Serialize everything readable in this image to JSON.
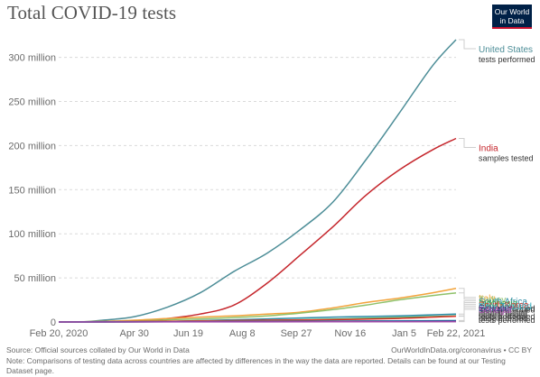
{
  "header": {
    "title": "Total COVID-19 tests",
    "logo_line1": "Our World",
    "logo_line2": "in Data"
  },
  "footer": {
    "source": "Source: Official sources collated by Our World in Data",
    "license": "OurWorldInData.org/coronavirus • CC BY",
    "note": "Note: Comparisons of testing data across countries are affected by differences in the way the data are reported. Details can be found at our Testing Dataset page."
  },
  "chart_data": {
    "type": "line",
    "title": "Total COVID-19 tests",
    "xlabel": "",
    "ylabel": "",
    "x_start": "2020-02-20",
    "x_end": "2021-02-22",
    "x_ticks": [
      {
        "date": "2020-02-20",
        "label": "Feb 20, 2020"
      },
      {
        "date": "2020-04-30",
        "label": "Apr 30"
      },
      {
        "date": "2020-06-19",
        "label": "Jun 19"
      },
      {
        "date": "2020-08-08",
        "label": "Aug 8"
      },
      {
        "date": "2020-09-27",
        "label": "Sep 27"
      },
      {
        "date": "2020-11-16",
        "label": "Nov 16"
      },
      {
        "date": "2021-01-05",
        "label": "Jan 5"
      },
      {
        "date": "2021-02-22",
        "label": "Feb 22, 2021"
      }
    ],
    "ylim": [
      0,
      320
    ],
    "y_unit": "million",
    "y_ticks": [
      {
        "value": 0,
        "label": "0"
      },
      {
        "value": 50,
        "label": "50 million"
      },
      {
        "value": 100,
        "label": "100 million"
      },
      {
        "value": 150,
        "label": "150 million"
      },
      {
        "value": 200,
        "label": "200 million"
      },
      {
        "value": 250,
        "label": "250 million"
      },
      {
        "value": 300,
        "label": "300 million"
      }
    ],
    "grid": true,
    "legend_placement": "right",
    "series": [
      {
        "name": "United States",
        "unit": "tests performed",
        "color": "#4c8d97",
        "points": [
          [
            "2020-02-20",
            0
          ],
          [
            "2020-03-15",
            0.3
          ],
          [
            "2020-04-01",
            2
          ],
          [
            "2020-04-30",
            6
          ],
          [
            "2020-05-31",
            17
          ],
          [
            "2020-06-30",
            33
          ],
          [
            "2020-07-31",
            57
          ],
          [
            "2020-08-31",
            78
          ],
          [
            "2020-09-30",
            104
          ],
          [
            "2020-10-31",
            136
          ],
          [
            "2020-11-30",
            183
          ],
          [
            "2020-12-31",
            236
          ],
          [
            "2021-01-31",
            290
          ],
          [
            "2021-02-22",
            320
          ]
        ]
      },
      {
        "name": "India",
        "unit": "samples tested",
        "color": "#c5262c",
        "points": [
          [
            "2020-02-20",
            0
          ],
          [
            "2020-03-31",
            0.05
          ],
          [
            "2020-04-30",
            0.9
          ],
          [
            "2020-05-31",
            4
          ],
          [
            "2020-06-30",
            9
          ],
          [
            "2020-07-31",
            19
          ],
          [
            "2020-08-31",
            44
          ],
          [
            "2020-09-30",
            75
          ],
          [
            "2020-10-31",
            108
          ],
          [
            "2020-11-30",
            143
          ],
          [
            "2020-12-31",
            172
          ],
          [
            "2021-01-31",
            195
          ],
          [
            "2021-02-22",
            208
          ]
        ]
      },
      {
        "name": "Italy",
        "unit": "tests performed",
        "color": "#f2a33b",
        "points": [
          [
            "2020-02-20",
            0
          ],
          [
            "2020-03-31",
            0.6
          ],
          [
            "2020-04-30",
            2
          ],
          [
            "2020-05-31",
            4
          ],
          [
            "2020-06-30",
            5.5
          ],
          [
            "2020-07-31",
            7
          ],
          [
            "2020-08-31",
            9
          ],
          [
            "2020-09-30",
            11
          ],
          [
            "2020-10-31",
            16
          ],
          [
            "2020-11-30",
            22
          ],
          [
            "2020-12-31",
            27
          ],
          [
            "2021-01-31",
            33
          ],
          [
            "2021-02-22",
            38
          ]
        ]
      },
      {
        "name": "Turkey",
        "unit": "tests performed",
        "color": "#8fc16a",
        "points": [
          [
            "2020-02-20",
            0
          ],
          [
            "2020-04-30",
            1
          ],
          [
            "2020-05-31",
            2.5
          ],
          [
            "2020-06-30",
            3.5
          ],
          [
            "2020-07-31",
            5
          ],
          [
            "2020-08-31",
            7
          ],
          [
            "2020-09-30",
            10
          ],
          [
            "2020-10-31",
            14
          ],
          [
            "2020-11-30",
            19
          ],
          [
            "2020-12-31",
            25
          ],
          [
            "2021-01-31",
            30
          ],
          [
            "2021-02-22",
            33
          ]
        ]
      },
      {
        "name": "South Africa",
        "unit": "people tested",
        "color": "#2a8aa4",
        "points": [
          [
            "2020-02-20",
            0
          ],
          [
            "2020-04-30",
            0.2
          ],
          [
            "2020-06-30",
            1.5
          ],
          [
            "2020-08-31",
            3.5
          ],
          [
            "2020-10-31",
            5.5
          ],
          [
            "2020-12-31",
            7
          ],
          [
            "2021-02-22",
            9
          ]
        ]
      },
      {
        "name": "Indonesia",
        "unit": "people tested",
        "color": "#3ea34a",
        "points": [
          [
            "2020-02-20",
            0
          ],
          [
            "2020-04-30",
            0.1
          ],
          [
            "2020-06-30",
            0.7
          ],
          [
            "2020-08-31",
            1.8
          ],
          [
            "2020-10-31",
            3.2
          ],
          [
            "2020-12-31",
            5
          ],
          [
            "2021-02-22",
            7
          ]
        ]
      },
      {
        "name": "South Korea",
        "unit": "people tested",
        "color": "#e0352b",
        "points": [
          [
            "2020-02-20",
            0
          ],
          [
            "2020-04-30",
            0.6
          ],
          [
            "2020-06-30",
            1.2
          ],
          [
            "2020-08-31",
            2
          ],
          [
            "2020-10-31",
            2.6
          ],
          [
            "2020-12-31",
            4
          ],
          [
            "2021-02-22",
            6.5
          ]
        ]
      },
      {
        "name": "New Zealand",
        "unit": "tests performed",
        "color": "#29a8b8",
        "points": [
          [
            "2020-02-20",
            0
          ],
          [
            "2020-05-31",
            0.3
          ],
          [
            "2020-08-31",
            0.8
          ],
          [
            "2020-12-31",
            1.2
          ],
          [
            "2021-02-22",
            1.6
          ]
        ]
      },
      {
        "name": "Ecuador",
        "unit": "people tested",
        "color": "#26418f",
        "points": [
          [
            "2020-02-20",
            0
          ],
          [
            "2020-05-31",
            0.2
          ],
          [
            "2020-08-31",
            0.45
          ],
          [
            "2020-12-31",
            0.9
          ],
          [
            "2021-02-22",
            1.1
          ]
        ]
      },
      {
        "name": "Senegal",
        "unit": "tests performed",
        "color": "#a24aa9",
        "points": [
          [
            "2020-02-20",
            0
          ],
          [
            "2020-08-31",
            0.15
          ],
          [
            "2021-02-22",
            0.45
          ]
        ]
      }
    ]
  }
}
